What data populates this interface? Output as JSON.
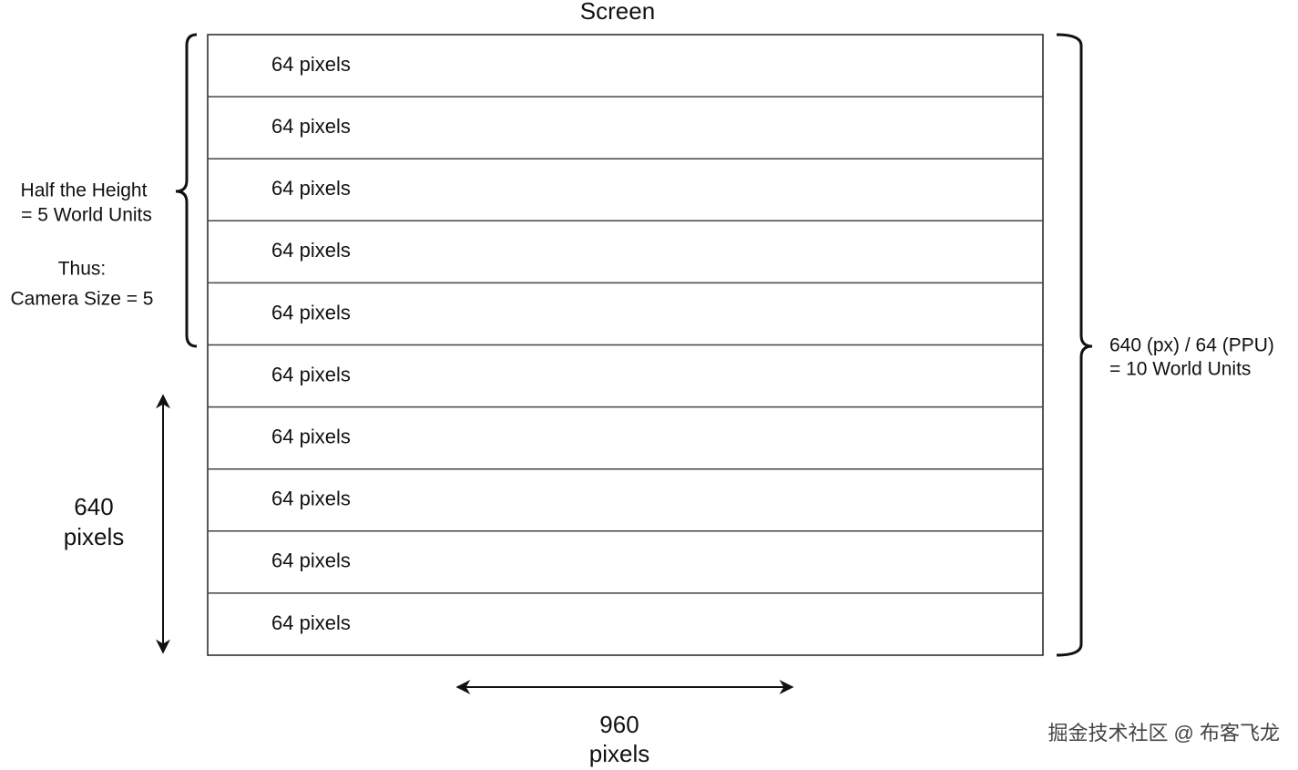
{
  "title": "Screen",
  "rows": [
    "64 pixels",
    "64 pixels",
    "64 pixels",
    "64 pixels",
    "64 pixels",
    "64 pixels",
    "64 pixels",
    "64 pixels",
    "64 pixels",
    "64 pixels"
  ],
  "left_note": {
    "line1": "Half the Height",
    "line2": "= 5 World Units",
    "line3": "Thus:",
    "line4": "Camera Size = 5"
  },
  "height_label": {
    "line1": "640",
    "line2": "pixels"
  },
  "width_label": {
    "line1": "960",
    "line2": "pixels"
  },
  "right_note": {
    "line1": "640 (px) / 64 (PPU)",
    "line2": "= 10 World Units"
  },
  "watermark": "掘金技术社区 @ 布客飞龙"
}
